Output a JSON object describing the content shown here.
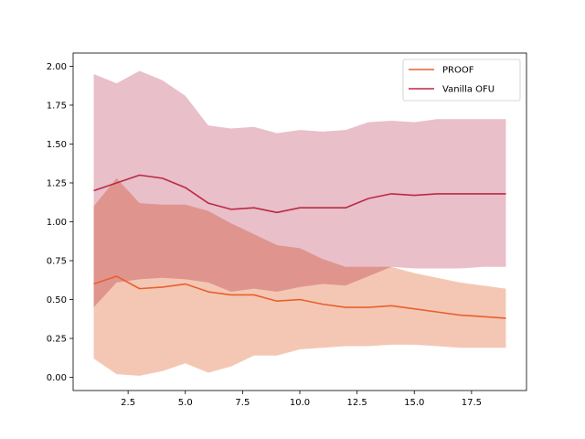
{
  "chart_data": {
    "type": "line",
    "title": "",
    "xlabel": "",
    "ylabel": "",
    "xlim": [
      0.1,
      19.9
    ],
    "ylim": [
      -0.085,
      2.085
    ],
    "grid": false,
    "legend_position": "top-right",
    "x_ticks": [
      2.5,
      5.0,
      7.5,
      10.0,
      12.5,
      15.0,
      17.5
    ],
    "x_tick_labels": [
      "2.5",
      "5.0",
      "7.5",
      "10.0",
      "12.5",
      "15.0",
      "17.5"
    ],
    "y_ticks": [
      0.0,
      0.25,
      0.5,
      0.75,
      1.0,
      1.25,
      1.5,
      1.75,
      2.0
    ],
    "y_tick_labels": [
      "0.00",
      "0.25",
      "0.50",
      "0.75",
      "1.00",
      "1.25",
      "1.50",
      "1.75",
      "2.00"
    ],
    "x": [
      1,
      2,
      3,
      4,
      5,
      6,
      7,
      8,
      9,
      10,
      11,
      12,
      13,
      14,
      15,
      16,
      17,
      18,
      19
    ],
    "series": [
      {
        "name": "PROOF",
        "color": "#e8602c",
        "band_color": "#f4c7b4",
        "values": [
          0.6,
          0.65,
          0.57,
          0.58,
          0.6,
          0.55,
          0.53,
          0.53,
          0.49,
          0.5,
          0.47,
          0.45,
          0.45,
          0.46,
          0.44,
          0.42,
          0.4,
          0.39,
          0.38
        ],
        "upper": [
          1.1,
          1.28,
          1.12,
          1.11,
          1.11,
          1.07,
          0.99,
          0.92,
          0.85,
          0.83,
          0.76,
          0.71,
          0.71,
          0.71,
          0.67,
          0.64,
          0.61,
          0.59,
          0.57
        ],
        "lower": [
          0.12,
          0.02,
          0.01,
          0.04,
          0.09,
          0.03,
          0.07,
          0.14,
          0.14,
          0.18,
          0.19,
          0.2,
          0.2,
          0.21,
          0.21,
          0.2,
          0.19,
          0.19,
          0.19
        ]
      },
      {
        "name": "Vanilla OFU",
        "color": "#bb2a45",
        "band_color": "#e8bcc6",
        "values": [
          1.2,
          1.25,
          1.3,
          1.28,
          1.22,
          1.12,
          1.08,
          1.09,
          1.06,
          1.09,
          1.09,
          1.09,
          1.15,
          1.18,
          1.17,
          1.18,
          1.18,
          1.18,
          1.18
        ],
        "upper": [
          1.95,
          1.89,
          1.97,
          1.91,
          1.81,
          1.62,
          1.6,
          1.61,
          1.57,
          1.59,
          1.58,
          1.59,
          1.64,
          1.65,
          1.64,
          1.66,
          1.66,
          1.66,
          1.66
        ],
        "lower": [
          0.45,
          0.61,
          0.63,
          0.64,
          0.63,
          0.61,
          0.55,
          0.57,
          0.55,
          0.58,
          0.6,
          0.59,
          0.65,
          0.71,
          0.7,
          0.7,
          0.7,
          0.71,
          0.71
        ]
      }
    ]
  }
}
